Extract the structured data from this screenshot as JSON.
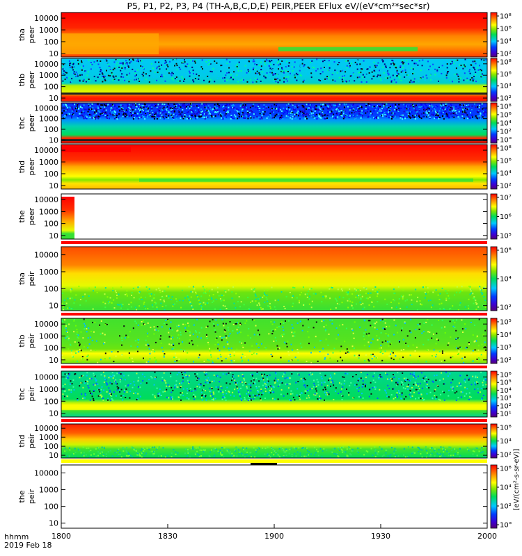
{
  "chart_data": {
    "type": "heatmap",
    "title": "P5, P1, P2, P3, P4 (TH-A,B,C,D,E) PEIR,PEER EFlux eV/(eV*cm²*sec*sr)",
    "x_axis": {
      "ticks": [
        "1800",
        "1830",
        "1900",
        "1930",
        "2000"
      ],
      "label_line1": "hhmm",
      "label_line2": "2019 Feb 18",
      "range": [
        "18:00",
        "20:00"
      ]
    },
    "y_scale": "log",
    "y_range": [
      5,
      30000
    ],
    "y_ticks": [
      "10",
      "100",
      "1000",
      "10000"
    ],
    "colorbar_unit": "[eV/(cm²-s-sr-eV)]",
    "panels": [
      {
        "id": "tha_peer",
        "label_line1": "tha",
        "label_line2": "peer",
        "cbar_ticks": [
          "10²",
          "10⁴",
          "10⁶",
          "10⁸"
        ],
        "features": [
          "high flux (red) at energies above ~1000 eV throughout",
          "orange/yellow band below 1000 eV",
          "green low-flux streak near 10-30 eV after 19:00"
        ]
      },
      {
        "id": "thb_peer",
        "label_line1": "thb",
        "label_line2": "peer",
        "cbar_ticks": [
          "10²",
          "10⁴",
          "10⁶",
          "10⁸"
        ],
        "features": [
          "noisy cyan/blue flux above ~200 eV",
          "yellow/green band 20-150 eV",
          "red band near 10-30 eV"
        ]
      },
      {
        "id": "thc_peer",
        "label_line1": "thc",
        "label_line2": "peer",
        "cbar_ticks": [
          "10°",
          "10²",
          "10⁴",
          "10⁶",
          "10⁸"
        ],
        "features": [
          "very noisy blue flux above ~1000 eV",
          "cyan/green band 30-800 eV",
          "red band near 10 eV"
        ]
      },
      {
        "id": "thd_peer",
        "label_line1": "thd",
        "label_line2": "peer",
        "cbar_ticks": [
          "10²",
          "10⁴",
          "10⁶",
          "10⁸"
        ],
        "features": [
          "red high flux above ~1000 eV",
          "orange to yellow below",
          "green streak near 20-40 eV"
        ]
      },
      {
        "id": "the_peer",
        "label_line1": "the",
        "label_line2": "peer",
        "cbar_ticks": [
          "10⁵",
          "10⁶",
          "10⁷"
        ],
        "features": [
          "data only in first minutes after 18:00",
          "remaining interval has no data"
        ]
      },
      {
        "id": "tha_peir",
        "label_line1": "tha",
        "label_line2": "peir",
        "cbar_ticks": [
          "10²",
          "10⁴",
          "10⁶"
        ],
        "features": [
          "orange/red flux above ~2000 eV",
          "yellow mid energies",
          "green speckled below ~100 eV"
        ]
      },
      {
        "id": "thb_peir",
        "label_line1": "thb",
        "label_line2": "peir",
        "cbar_ticks": [
          "10²",
          "10³",
          "10⁴",
          "10⁵"
        ],
        "features": [
          "mostly green/yellow noisy flux",
          "yellow band near 20-50 eV"
        ]
      },
      {
        "id": "thc_peir",
        "label_line1": "thc",
        "label_line2": "peir",
        "cbar_ticks": [
          "10¹",
          "10²",
          "10³",
          "10⁴",
          "10⁵",
          "10⁶"
        ],
        "features": [
          "green/cyan noisy flux",
          "yellow band near 20-60 eV"
        ]
      },
      {
        "id": "thd_peir",
        "label_line1": "thd",
        "label_line2": "peir",
        "cbar_ticks": [
          "10²",
          "10⁴",
          "10⁶"
        ],
        "features": [
          "red/orange above ~3000 eV",
          "yellow mid energies",
          "green below ~100 eV"
        ]
      },
      {
        "id": "the_peir",
        "label_line1": "the",
        "label_line2": "peir",
        "cbar_ticks": [
          "10°",
          "10²",
          "10⁴",
          "10⁶"
        ],
        "features": [
          "no data displayed"
        ]
      }
    ]
  }
}
